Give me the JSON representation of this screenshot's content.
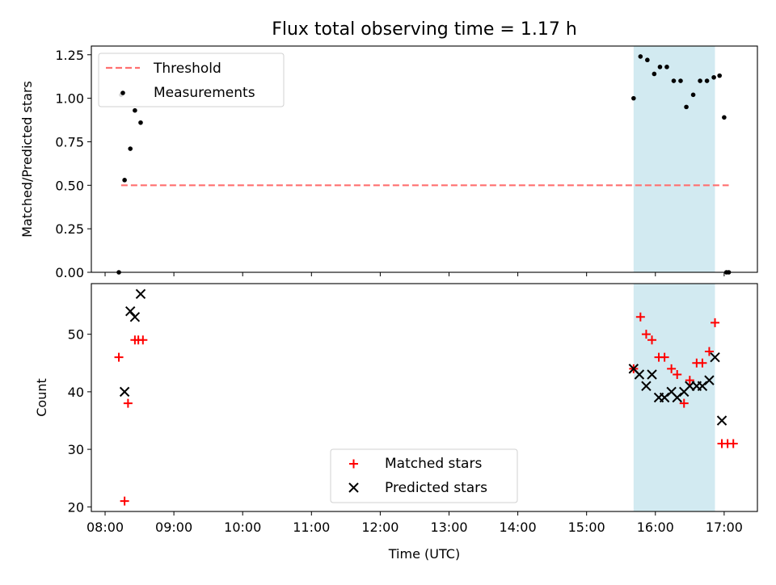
{
  "chart_data": {
    "title": "Flux total observing time = 1.17 h",
    "xlabel": "Time (UTC)",
    "x_ticks": [
      "08:00",
      "09:00",
      "10:00",
      "11:00",
      "12:00",
      "13:00",
      "14:00",
      "15:00",
      "16:00",
      "17:00"
    ],
    "xlim": [
      "07:48",
      "17:29"
    ],
    "highlight_span": [
      "15:41",
      "16:52"
    ],
    "highlight_color": "#add8e6",
    "panels": [
      {
        "type": "scatter",
        "ylabel": "Matched/Predicted stars",
        "ylim": [
          0.0,
          1.3
        ],
        "y_ticks": [
          "0.00",
          "0.25",
          "0.50",
          "0.75",
          "1.00",
          "1.25"
        ],
        "legend_position": "upper-left",
        "threshold": {
          "name": "Threshold",
          "value": 0.5,
          "x_range": [
            "08:14",
            "17:04"
          ],
          "color": "#ff7070",
          "style": "dashed"
        },
        "series": [
          {
            "name": "Measurements",
            "marker": "dot",
            "color": "#000000",
            "x": [
              "08:12",
              "08:14",
              "08:17",
              "08:22",
              "08:26",
              "08:31",
              "15:41",
              "15:47",
              "15:53",
              "15:59",
              "16:04",
              "16:10",
              "16:16",
              "16:22",
              "16:27",
              "16:33",
              "16:39",
              "16:45",
              "16:51",
              "16:56",
              "17:00",
              "17:04"
            ],
            "y": [
              0.0,
              1.02,
              0.53,
              0.71,
              0.93,
              0.86,
              1.0,
              1.24,
              1.22,
              1.14,
              1.18,
              1.18,
              1.1,
              1.1,
              0.95,
              1.02,
              1.1,
              1.1,
              1.12,
              1.13,
              0.89,
              0.0
            ]
          },
          {
            "x": [
              "17:02"
            ],
            "y": [
              0.0
            ],
            "marker": "dot",
            "color": "#000000"
          }
        ]
      },
      {
        "type": "scatter",
        "ylabel": "Count",
        "ylim": [
          19.2,
          58.8
        ],
        "y_ticks": [
          "20",
          "30",
          "40",
          "50"
        ],
        "legend_position": "lower-center",
        "series": [
          {
            "name": "Matched stars",
            "marker": "plus",
            "color": "#ff0000",
            "x": [
              "08:12",
              "08:17",
              "08:20",
              "08:26",
              "08:29",
              "08:33",
              "15:41",
              "15:47",
              "15:52",
              "15:57",
              "16:03",
              "16:08",
              "16:14",
              "16:19",
              "16:25",
              "16:30",
              "16:36",
              "16:41",
              "16:47",
              "16:52",
              "16:58",
              "17:03",
              "17:08"
            ],
            "y": [
              46,
              21,
              38,
              49,
              49,
              49,
              44,
              53,
              50,
              49,
              46,
              46,
              44,
              43,
              38,
              42,
              45,
              45,
              47,
              52,
              31,
              31,
              31
            ]
          },
          {
            "name": "Predicted stars",
            "marker": "x",
            "color": "#000000",
            "x": [
              "08:17",
              "08:22",
              "08:26",
              "08:31",
              "15:41",
              "15:46",
              "15:52",
              "15:57",
              "16:03",
              "16:08",
              "16:14",
              "16:19",
              "16:25",
              "16:30",
              "16:36",
              "16:41",
              "16:47",
              "16:52",
              "16:58"
            ],
            "y": [
              40,
              54,
              53,
              57,
              44,
              43,
              41,
              43,
              39,
              39,
              40,
              39,
              40,
              41,
              41,
              41,
              42,
              46,
              35
            ]
          }
        ]
      }
    ]
  }
}
